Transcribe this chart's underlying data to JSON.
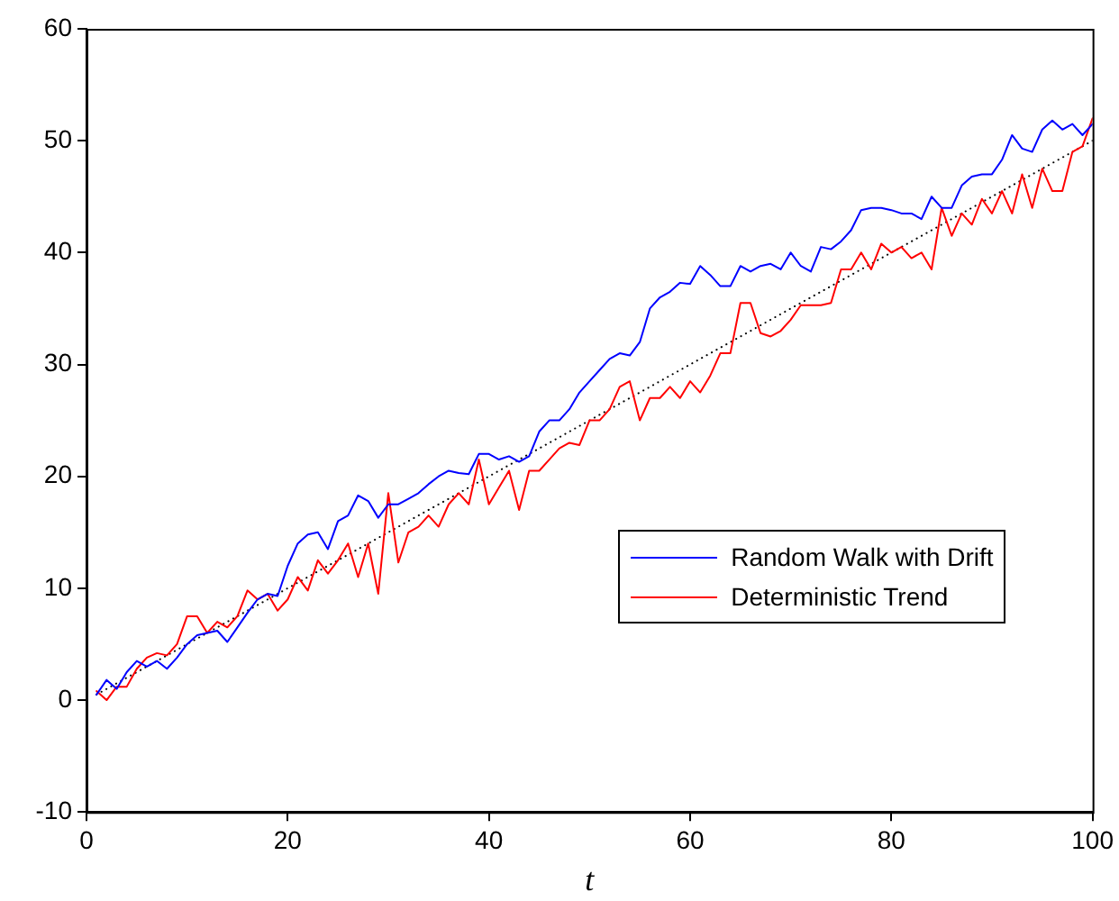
{
  "chart_data": {
    "type": "line",
    "xlabel": "t",
    "xlim": [
      0,
      100
    ],
    "xticks": [
      0,
      20,
      40,
      60,
      80,
      100
    ],
    "ylim": [
      -10,
      60
    ],
    "yticks": [
      -10,
      0,
      10,
      20,
      30,
      40,
      50,
      60
    ],
    "grid": false,
    "legend": "right",
    "marker": "none",
    "x": [
      1,
      2,
      3,
      4,
      5,
      6,
      7,
      8,
      9,
      10,
      11,
      12,
      13,
      14,
      15,
      16,
      17,
      18,
      19,
      20,
      21,
      22,
      23,
      24,
      25,
      26,
      27,
      28,
      29,
      30,
      31,
      32,
      33,
      34,
      35,
      36,
      37,
      38,
      39,
      40,
      41,
      42,
      43,
      44,
      45,
      46,
      47,
      48,
      49,
      50,
      51,
      52,
      53,
      54,
      55,
      56,
      57,
      58,
      59,
      60,
      61,
      62,
      63,
      64,
      65,
      66,
      67,
      68,
      69,
      70,
      71,
      72,
      73,
      74,
      75,
      76,
      77,
      78,
      79,
      80,
      81,
      82,
      83,
      84,
      85,
      86,
      87,
      88,
      89,
      90,
      91,
      92,
      93,
      94,
      95,
      96,
      97,
      98,
      99,
      100
    ],
    "series": [
      {
        "name": "Random Walk with Drift",
        "color": "#0000ff",
        "line_style": "solid",
        "values": [
          0.5,
          1.8,
          1,
          2.5,
          3.5,
          3,
          3.5,
          2.8,
          3.8,
          5,
          5.8,
          6,
          6.2,
          5.2,
          6.5,
          7.8,
          9,
          9.5,
          9.3,
          12,
          14,
          14.8,
          15,
          13.5,
          16,
          16.5,
          18.3,
          17.8,
          16.3,
          17.5,
          17.5,
          18,
          18.5,
          19.3,
          20,
          20.5,
          20.3,
          20.2,
          22,
          22,
          21.5,
          21.8,
          21.3,
          21.8,
          24,
          25,
          25,
          26,
          27.5,
          28.5,
          29.5,
          30.5,
          31,
          30.8,
          32,
          35,
          36,
          36.5,
          37.3,
          37.2,
          38.8,
          38,
          37,
          37,
          38.8,
          38.3,
          38.8,
          39,
          38.5,
          40,
          38.8,
          38.3,
          40.5,
          40.3,
          41,
          42,
          43.8,
          44,
          44,
          43.8,
          43.5,
          43.5,
          43,
          45,
          44,
          44,
          46,
          46.8,
          47,
          47,
          48.3,
          50.5,
          49.3,
          49,
          51,
          51.8,
          51,
          51.5,
          50.5,
          51.5
        ]
      },
      {
        "name": "Deterministic Trend",
        "color": "#ff0000",
        "line_style": "solid",
        "values": [
          0.8,
          0,
          1.2,
          1.2,
          2.8,
          3.8,
          4.2,
          4,
          5,
          7.5,
          7.5,
          6,
          7,
          6.5,
          7.5,
          9.8,
          9,
          9.5,
          8,
          9,
          11,
          9.8,
          12.5,
          11.3,
          12.5,
          14,
          11,
          14,
          9.5,
          18.5,
          12.3,
          15,
          15.5,
          16.5,
          15.5,
          17.5,
          18.5,
          17.5,
          21.5,
          17.5,
          19,
          20.5,
          17,
          20.5,
          20.5,
          21.5,
          22.5,
          23,
          22.8,
          25,
          25,
          26,
          28,
          28.5,
          25,
          27,
          27,
          28,
          27,
          28.5,
          27.5,
          29,
          31,
          31,
          35.5,
          35.5,
          32.8,
          32.5,
          33,
          34,
          35.3,
          35.3,
          35.3,
          35.5,
          38.5,
          38.5,
          40,
          38.5,
          40.8,
          40,
          40.5,
          39.5,
          40,
          38.5,
          44,
          41.5,
          43.5,
          42.5,
          44.8,
          43.5,
          45.5,
          43.5,
          47,
          44,
          47.5,
          45.5,
          45.5,
          49,
          49.5,
          52
        ]
      },
      {
        "color": "#000000",
        "line_style": "dotted",
        "x": [
          1,
          100
        ],
        "values": [
          0.5,
          50
        ]
      }
    ]
  }
}
